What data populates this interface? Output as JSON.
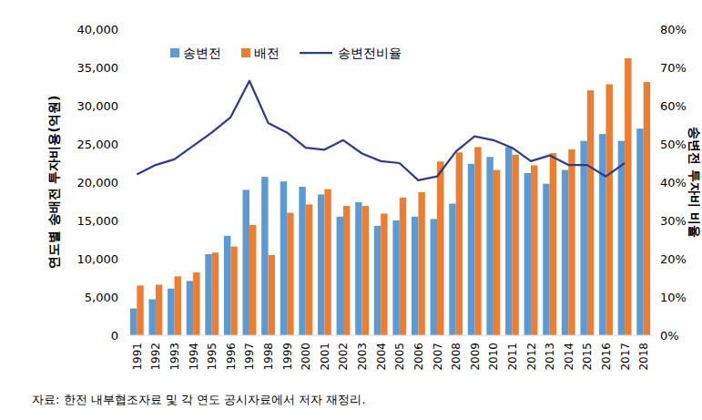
{
  "chart_data": {
    "type": "bar",
    "y_label": "연도별 송배전 투자비용(억원)",
    "y2_label": "송변전 투자비 비율",
    "note": "자료: 한전 내부협조자료 및 각 연도 공시자료에서 저자 재정리.",
    "categories": [
      "1991",
      "1992",
      "1993",
      "1994",
      "1995",
      "1996",
      "1997",
      "1998",
      "1999",
      "2000",
      "2001",
      "2002",
      "2003",
      "2004",
      "2005",
      "2006",
      "2007",
      "2008",
      "2009",
      "2010",
      "2011",
      "2012",
      "2013",
      "2014",
      "2015",
      "2016",
      "2017",
      "2018"
    ],
    "series": [
      {
        "name": "송변전",
        "type": "bar",
        "color": "#5b9bd5",
        "values": [
          3500,
          4700,
          6100,
          7100,
          10600,
          13000,
          19000,
          20700,
          20100,
          19400,
          18400,
          15500,
          17400,
          14300,
          15000,
          15500,
          15200,
          17200,
          22400,
          23300,
          24600,
          21200,
          19800,
          21600,
          25400,
          26300,
          25400,
          27000
        ]
      },
      {
        "name": "배전",
        "type": "bar",
        "color": "#ed7d31",
        "values": [
          6500,
          6600,
          7700,
          8200,
          10800,
          11600,
          14400,
          10500,
          16000,
          17100,
          19100,
          16900,
          16900,
          15900,
          18000,
          18700,
          22700,
          23900,
          24600,
          21600,
          23600,
          22200,
          23800,
          24300,
          32000,
          32800,
          36200,
          33100
        ]
      },
      {
        "name": "송변전비율",
        "type": "line",
        "axis": "y2",
        "color": "#2f3b8f",
        "values": [
          42,
          44.5,
          46,
          49.5,
          53,
          57,
          66.5,
          55.5,
          53,
          49,
          48.5,
          51,
          47.5,
          45.5,
          45,
          40.5,
          41.5,
          48,
          52,
          51,
          49,
          45.5,
          47,
          44.5,
          44.5,
          41.5,
          45,
          null
        ]
      }
    ],
    "ylim": [
      0,
      40000
    ],
    "yticks": [
      0,
      {
        "value": 5000,
        "label": "5,000"
      },
      {
        "value": 10000,
        "label": "10,000"
      },
      {
        "value": 15000,
        "label": "15,000"
      },
      {
        "value": 20000,
        "label": "20,000"
      },
      {
        "value": 25000,
        "label": "25,000"
      },
      {
        "value": 30000,
        "label": "30,000"
      },
      {
        "value": 35000,
        "label": "35,000"
      },
      {
        "value": 40000,
        "label": "40,000"
      }
    ],
    "y2lim": [
      0,
      80
    ],
    "y2ticks": [
      {
        "value": 0,
        "label": "0%"
      },
      {
        "value": 10,
        "label": "10%"
      },
      {
        "value": 20,
        "label": "20%"
      },
      {
        "value": 30,
        "label": "30%"
      },
      {
        "value": 40,
        "label": "40%"
      },
      {
        "value": 50,
        "label": "50%"
      },
      {
        "value": 60,
        "label": "60%"
      },
      {
        "value": 70,
        "label": "70%"
      },
      {
        "value": 80,
        "label": "80%"
      }
    ],
    "grid": false,
    "legend": "top"
  }
}
